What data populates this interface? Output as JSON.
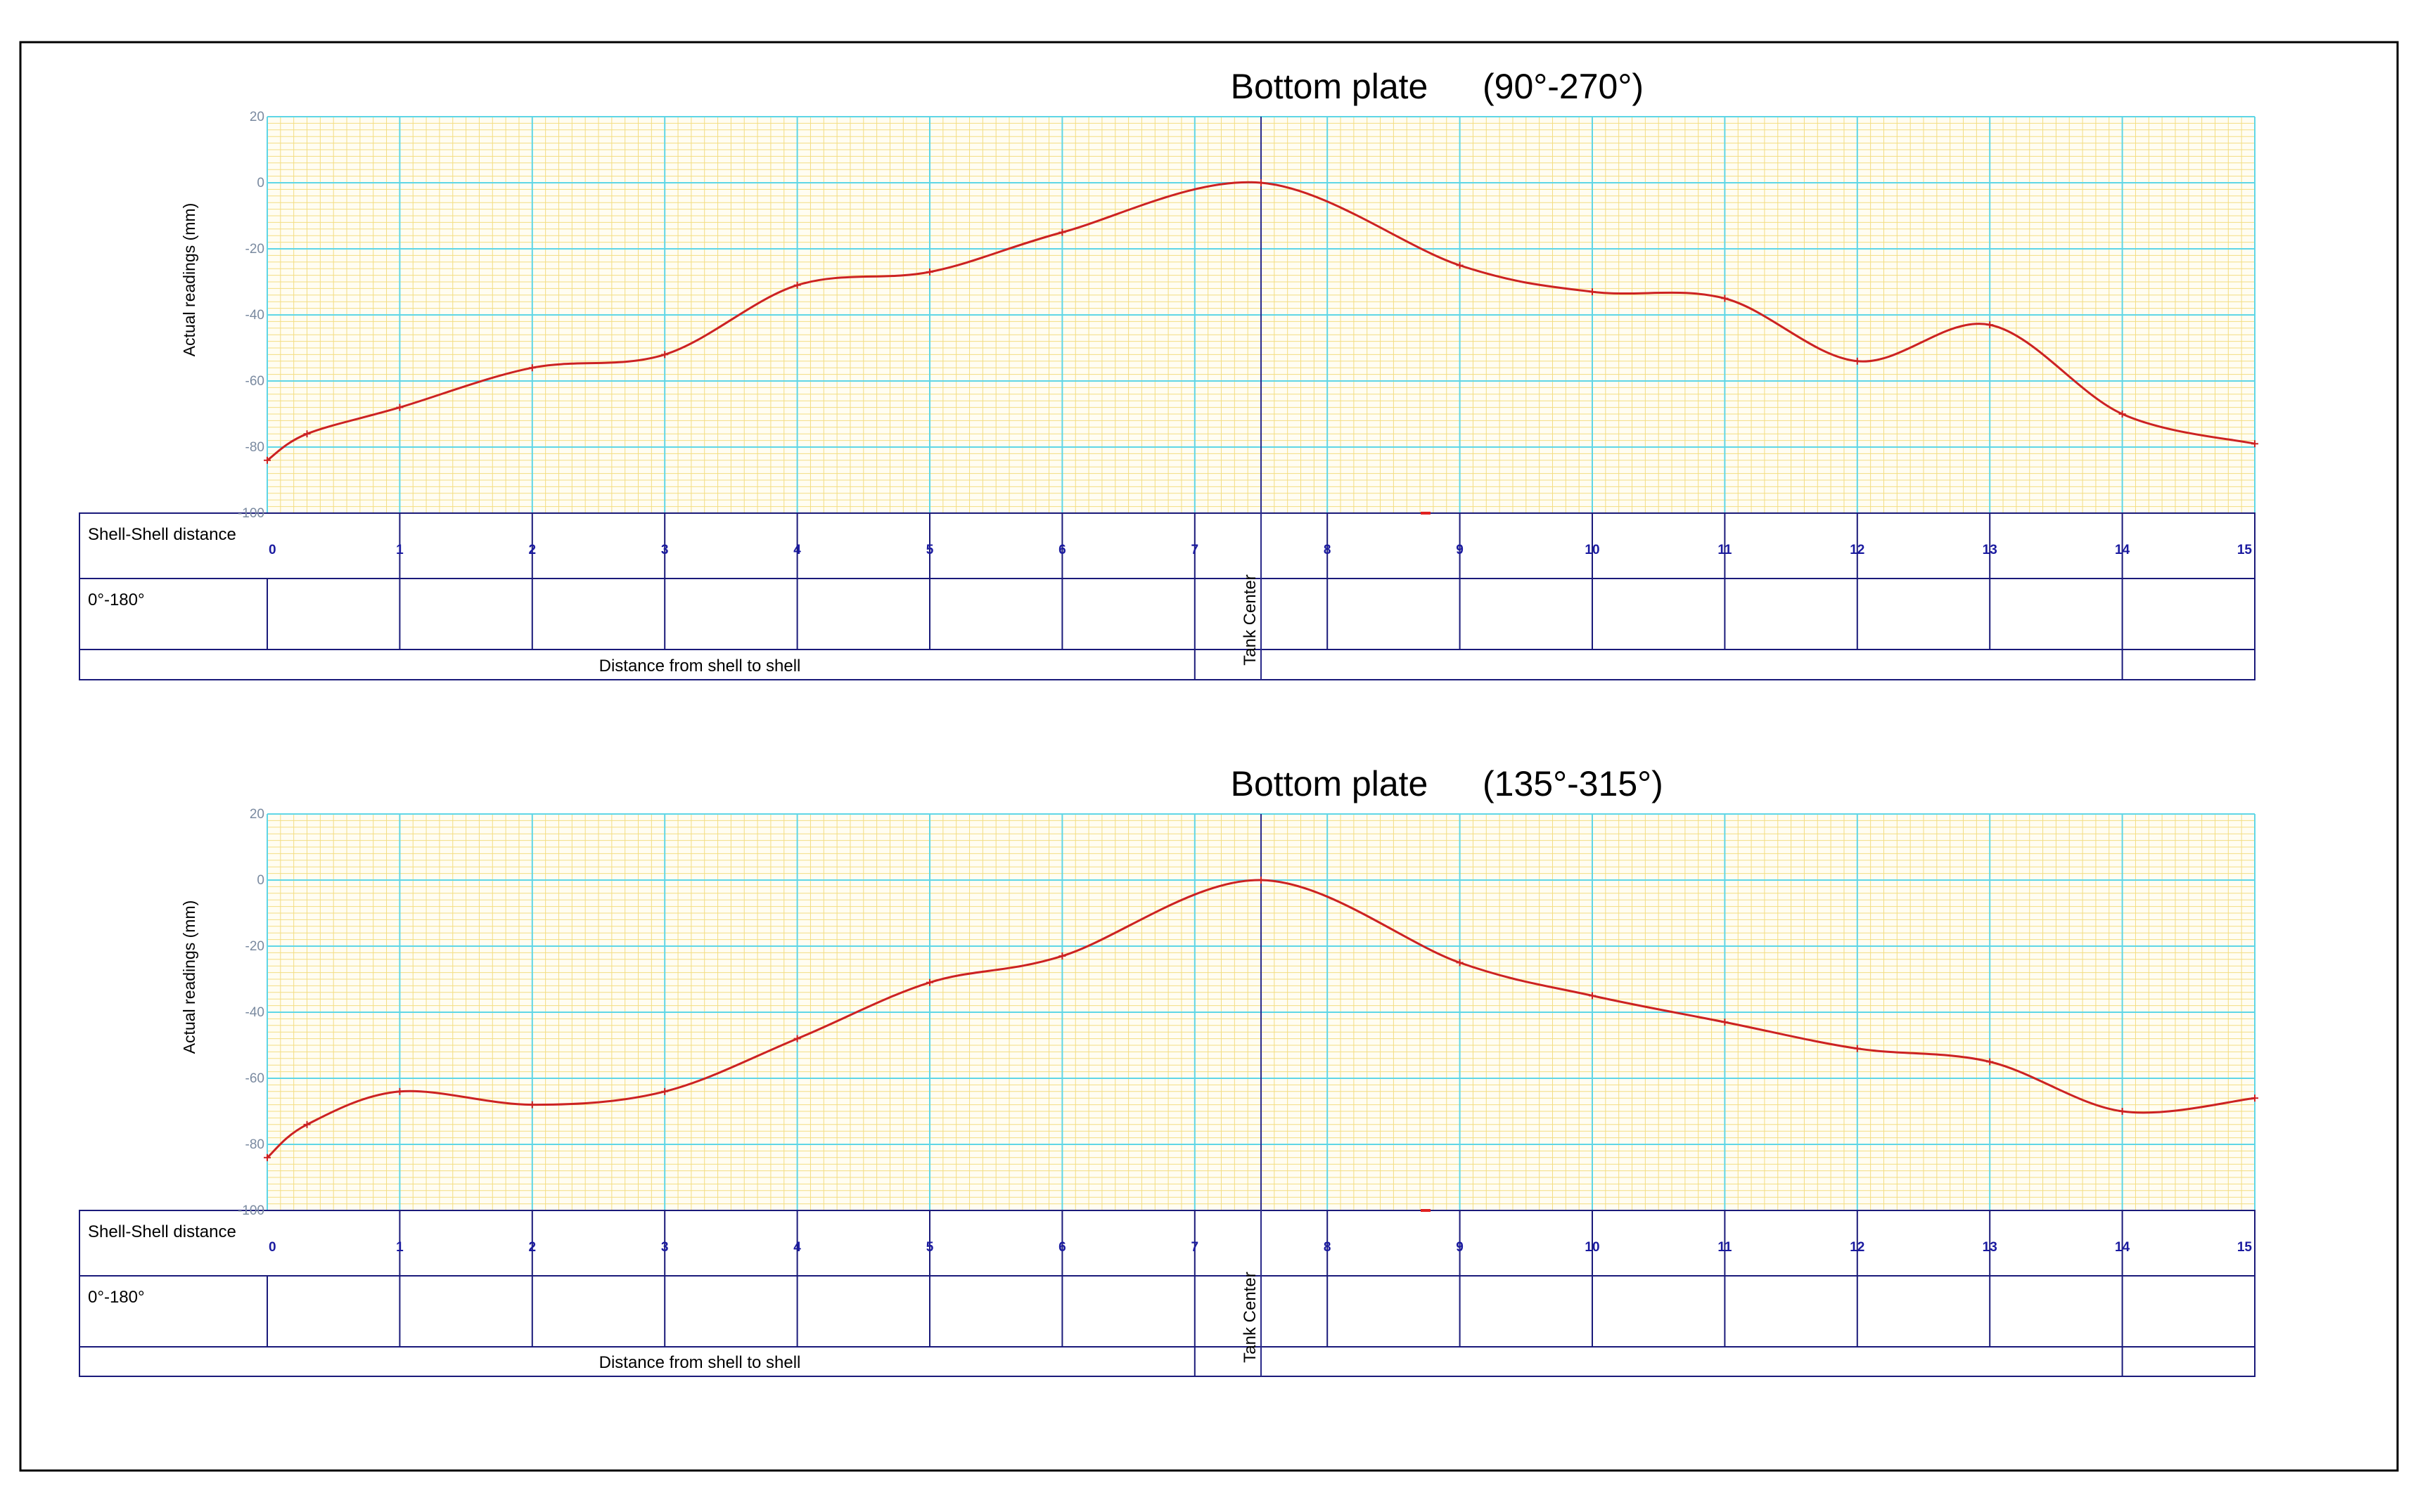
{
  "chart_data": [
    {
      "type": "line",
      "title": "Bottom plate",
      "subtitle": "(90°-270°)",
      "ylabel": "Actual readings (mm)",
      "xlabel": "Distance from shell to shell",
      "ylim": [
        -100,
        20
      ],
      "yticks": [
        20,
        0,
        -20,
        -40,
        -60,
        -80,
        -100
      ],
      "xlim": [
        0,
        15
      ],
      "xticks": [
        0,
        1,
        2,
        3,
        4,
        5,
        6,
        7,
        8,
        9,
        10,
        11,
        12,
        13,
        14,
        15
      ],
      "grid": true,
      "row_labels": [
        "Shell-Shell distance",
        "0°-180°"
      ],
      "center_label": "Tank Center",
      "center_x": 7.5,
      "line_color": "#cc2222",
      "x": [
        0,
        0.3,
        1,
        2,
        3,
        4,
        5,
        6,
        7.5,
        9,
        10,
        11,
        12,
        13,
        14,
        15
      ],
      "y": [
        -84,
        -76,
        -68,
        -56,
        -52,
        -31,
        -27,
        -15,
        0,
        -25,
        -33,
        -35,
        -54,
        -43,
        -70,
        -79
      ]
    },
    {
      "type": "line",
      "title": "Bottom plate",
      "subtitle": "(135°-315°)",
      "ylabel": "Actual readings (mm)",
      "xlabel": "Distance from shell to shell",
      "ylim": [
        -100,
        20
      ],
      "yticks": [
        20,
        0,
        -20,
        -40,
        -60,
        -80,
        -100
      ],
      "xlim": [
        0,
        15
      ],
      "xticks": [
        0,
        1,
        2,
        3,
        4,
        5,
        6,
        7,
        8,
        9,
        10,
        11,
        12,
        13,
        14,
        15
      ],
      "grid": true,
      "row_labels": [
        "Shell-Shell distance",
        "0°-180°"
      ],
      "center_label": "Tank Center",
      "center_x": 7.5,
      "line_color": "#cc2222",
      "x": [
        0,
        0.3,
        1,
        2,
        3,
        4,
        5,
        6,
        7.5,
        9,
        10,
        11,
        12,
        13,
        14,
        15
      ],
      "y": [
        -84,
        -74,
        -64,
        -68,
        -64,
        -48,
        -31,
        -23,
        0,
        -25,
        -35,
        -43,
        -51,
        -55,
        -70,
        -66
      ]
    }
  ]
}
